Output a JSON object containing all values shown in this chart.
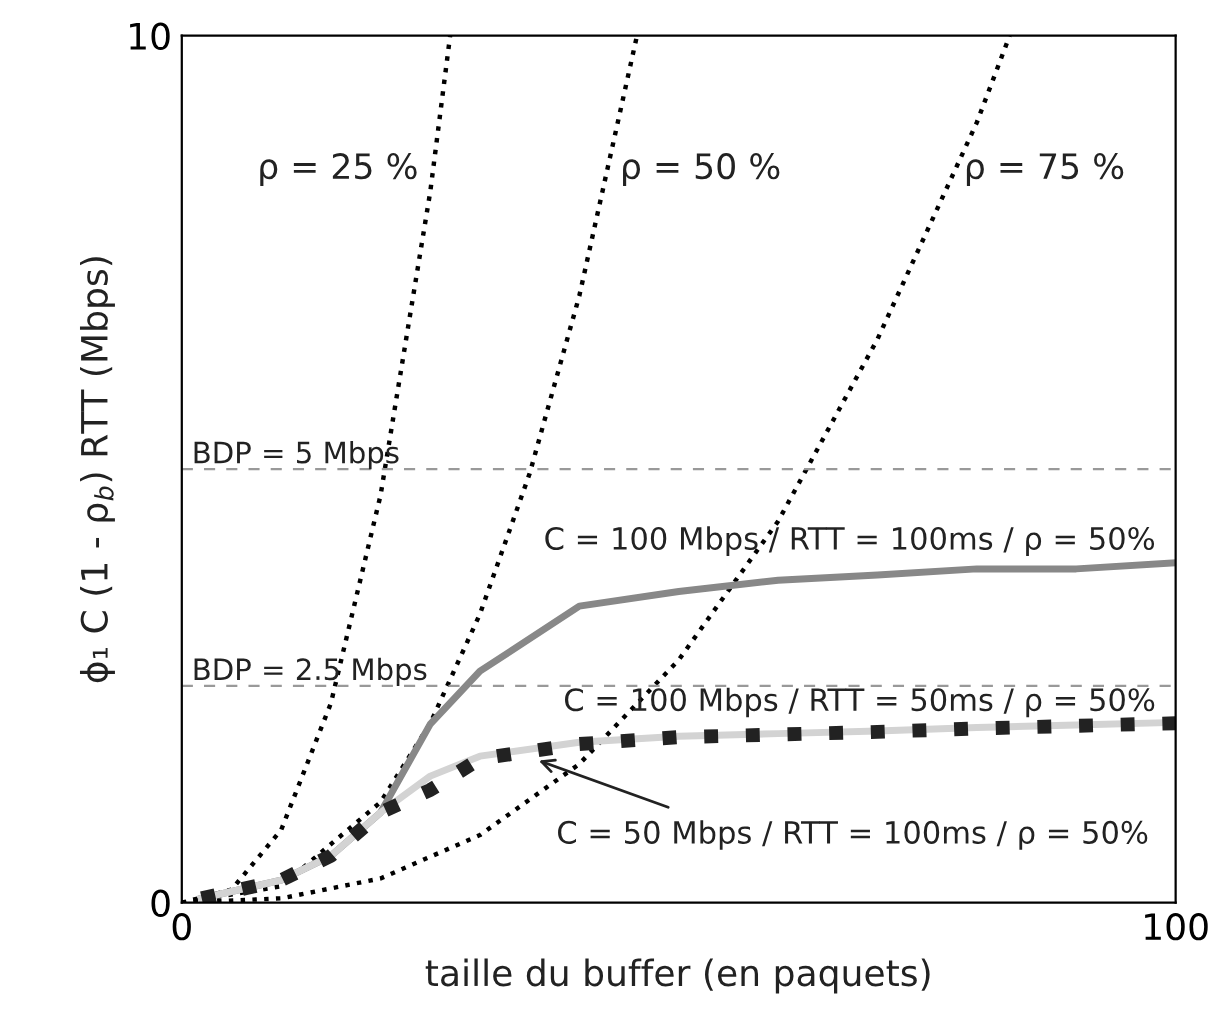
{
  "chart_data": {
    "type": "line",
    "xlabel": "taille du buffer (en paquets)",
    "ylabel": "ϕ₁ C (1 - ρ$_{b}$) RTT (Mbps)",
    "xlim": [
      0,
      100
    ],
    "ylim": [
      0,
      10
    ],
    "xticks": [
      0,
      100
    ],
    "yticks": [
      0,
      10
    ],
    "grid": false,
    "legend": false,
    "series": [
      {
        "color": "#000000",
        "line_style": "dotted",
        "x": [
          0,
          5,
          10,
          15,
          20,
          25,
          27
        ],
        "values": [
          0,
          0.15,
          0.84,
          2.3,
          4.7,
          8.2,
          10
        ]
      },
      {
        "color": "#000000",
        "line_style": "dotted",
        "x": [
          0,
          10,
          20,
          25,
          30,
          35,
          40,
          45.8
        ],
        "values": [
          0,
          0.19,
          1.16,
          2.07,
          3.33,
          4.95,
          7.0,
          10
        ]
      },
      {
        "color": "#000000",
        "line_style": "dotted",
        "x": [
          0,
          10,
          20,
          30,
          40,
          50,
          60,
          70,
          80,
          83.3
        ],
        "values": [
          0,
          0.05,
          0.28,
          0.78,
          1.6,
          2.8,
          4.4,
          6.5,
          9.0,
          10
        ]
      },
      {
        "color": "#888888",
        "line_style": "solid",
        "x": [
          2,
          10,
          15,
          20,
          25,
          30,
          40,
          50,
          60,
          70,
          80,
          90,
          100
        ],
        "values": [
          0.05,
          0.26,
          0.54,
          1.04,
          2.06,
          2.67,
          3.42,
          3.59,
          3.72,
          3.78,
          3.85,
          3.85,
          3.92
        ]
      },
      {
        "color": "#d3d3d3",
        "line_style": "solid",
        "x": [
          2,
          10,
          15,
          20,
          25,
          30,
          40,
          50,
          60,
          70,
          80,
          90,
          100
        ],
        "values": [
          0.05,
          0.26,
          0.54,
          1.04,
          1.46,
          1.69,
          1.85,
          1.92,
          1.95,
          1.98,
          2.02,
          2.05,
          2.08
        ]
      },
      {
        "color": "#222222",
        "line_style": "dotted",
        "x": [
          2,
          10,
          15,
          20,
          25,
          30,
          40,
          50,
          60,
          70,
          80,
          90,
          100
        ],
        "values": [
          0.05,
          0.26,
          0.54,
          1.04,
          1.3,
          1.66,
          1.83,
          1.91,
          1.94,
          1.97,
          2.01,
          2.04,
          2.07
        ]
      }
    ],
    "ref_lines": [
      {
        "axis": "y",
        "value": 5,
        "label": "BDP = 5 Mbps",
        "color": "#999999",
        "line_style": "dashed"
      },
      {
        "axis": "y",
        "value": 2.5,
        "label": "BDP = 2.5 Mbps",
        "color": "#999999",
        "line_style": "dashed"
      }
    ],
    "annotations": [
      "ρ = 25 %",
      "ρ = 50 %",
      "ρ = 75 %",
      "C = 100 Mbps / RTT = 100ms / ρ = 50%",
      "C = 100 Mbps / RTT = 50ms / ρ = 50%",
      {
        "text": "C = 50 Mbps / RTT = 100ms / ρ = 50%",
        "x": 35.4,
        "y": 1.66
      }
    ]
  }
}
